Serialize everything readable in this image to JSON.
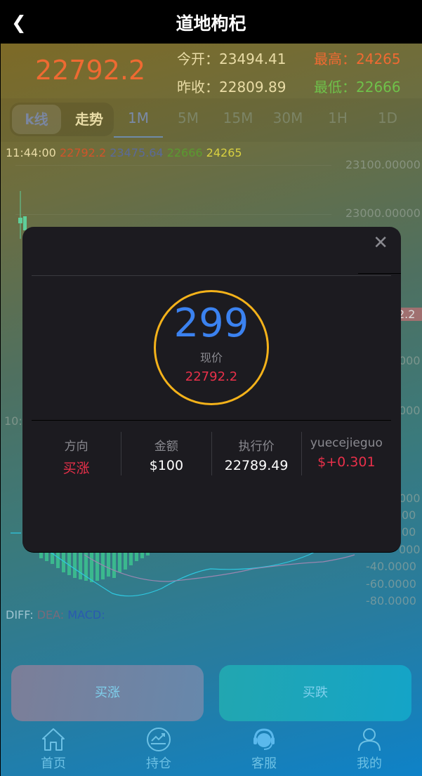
{
  "header": {
    "title": "道地枸杞",
    "back_icon": "chevron-left-icon"
  },
  "quote": {
    "price": "22792.2",
    "open_label": "今开：",
    "open": "23494.41",
    "prev_close_label": "昨收：",
    "prev_close": "22809.89",
    "high_label": "最高：",
    "high": "24265",
    "low_label": "最低：",
    "low": "22666"
  },
  "chart_tabs": {
    "kline": "k线",
    "trend": "走势",
    "timeframes": [
      "1M",
      "5M",
      "15M",
      "30M",
      "1H",
      "1D"
    ],
    "active": "1M"
  },
  "legend": {
    "time": "11:44:00",
    "close": "22792.2",
    "ma": "23475.64",
    "low": "22666",
    "high": "24265"
  },
  "axis": {
    "labels": [
      "23100.00000",
      "23000.00000",
      "2.2",
      "000",
      "000",
      "000",
      "00",
      "00",
      "000",
      "-40.0000",
      "-60.0000",
      "-80.0000"
    ],
    "left_time": "10:"
  },
  "macd": {
    "diff": "DIFF:",
    "dea": "DEA:",
    "macd": "MACD:"
  },
  "modal": {
    "countdown": "299",
    "price_label": "现价",
    "price": "22792.2",
    "columns": [
      {
        "label": "方向",
        "value": "买涨"
      },
      {
        "label": "金额",
        "value": "$100"
      },
      {
        "label": "执行价",
        "value": "22789.49"
      },
      {
        "label": "yuecejieguo",
        "value": "$+0.301"
      }
    ]
  },
  "actions": {
    "buy_up": "买涨",
    "buy_down": "买跌"
  },
  "nav": [
    {
      "label": "首页",
      "icon": "home-icon"
    },
    {
      "label": "持仓",
      "icon": "chart-icon"
    },
    {
      "label": "客服",
      "icon": "headset-icon"
    },
    {
      "label": "我的",
      "icon": "user-icon"
    }
  ],
  "colors": {
    "up": "#e8304a",
    "accent": "#3b82f0",
    "ring": "#f4b21a"
  }
}
